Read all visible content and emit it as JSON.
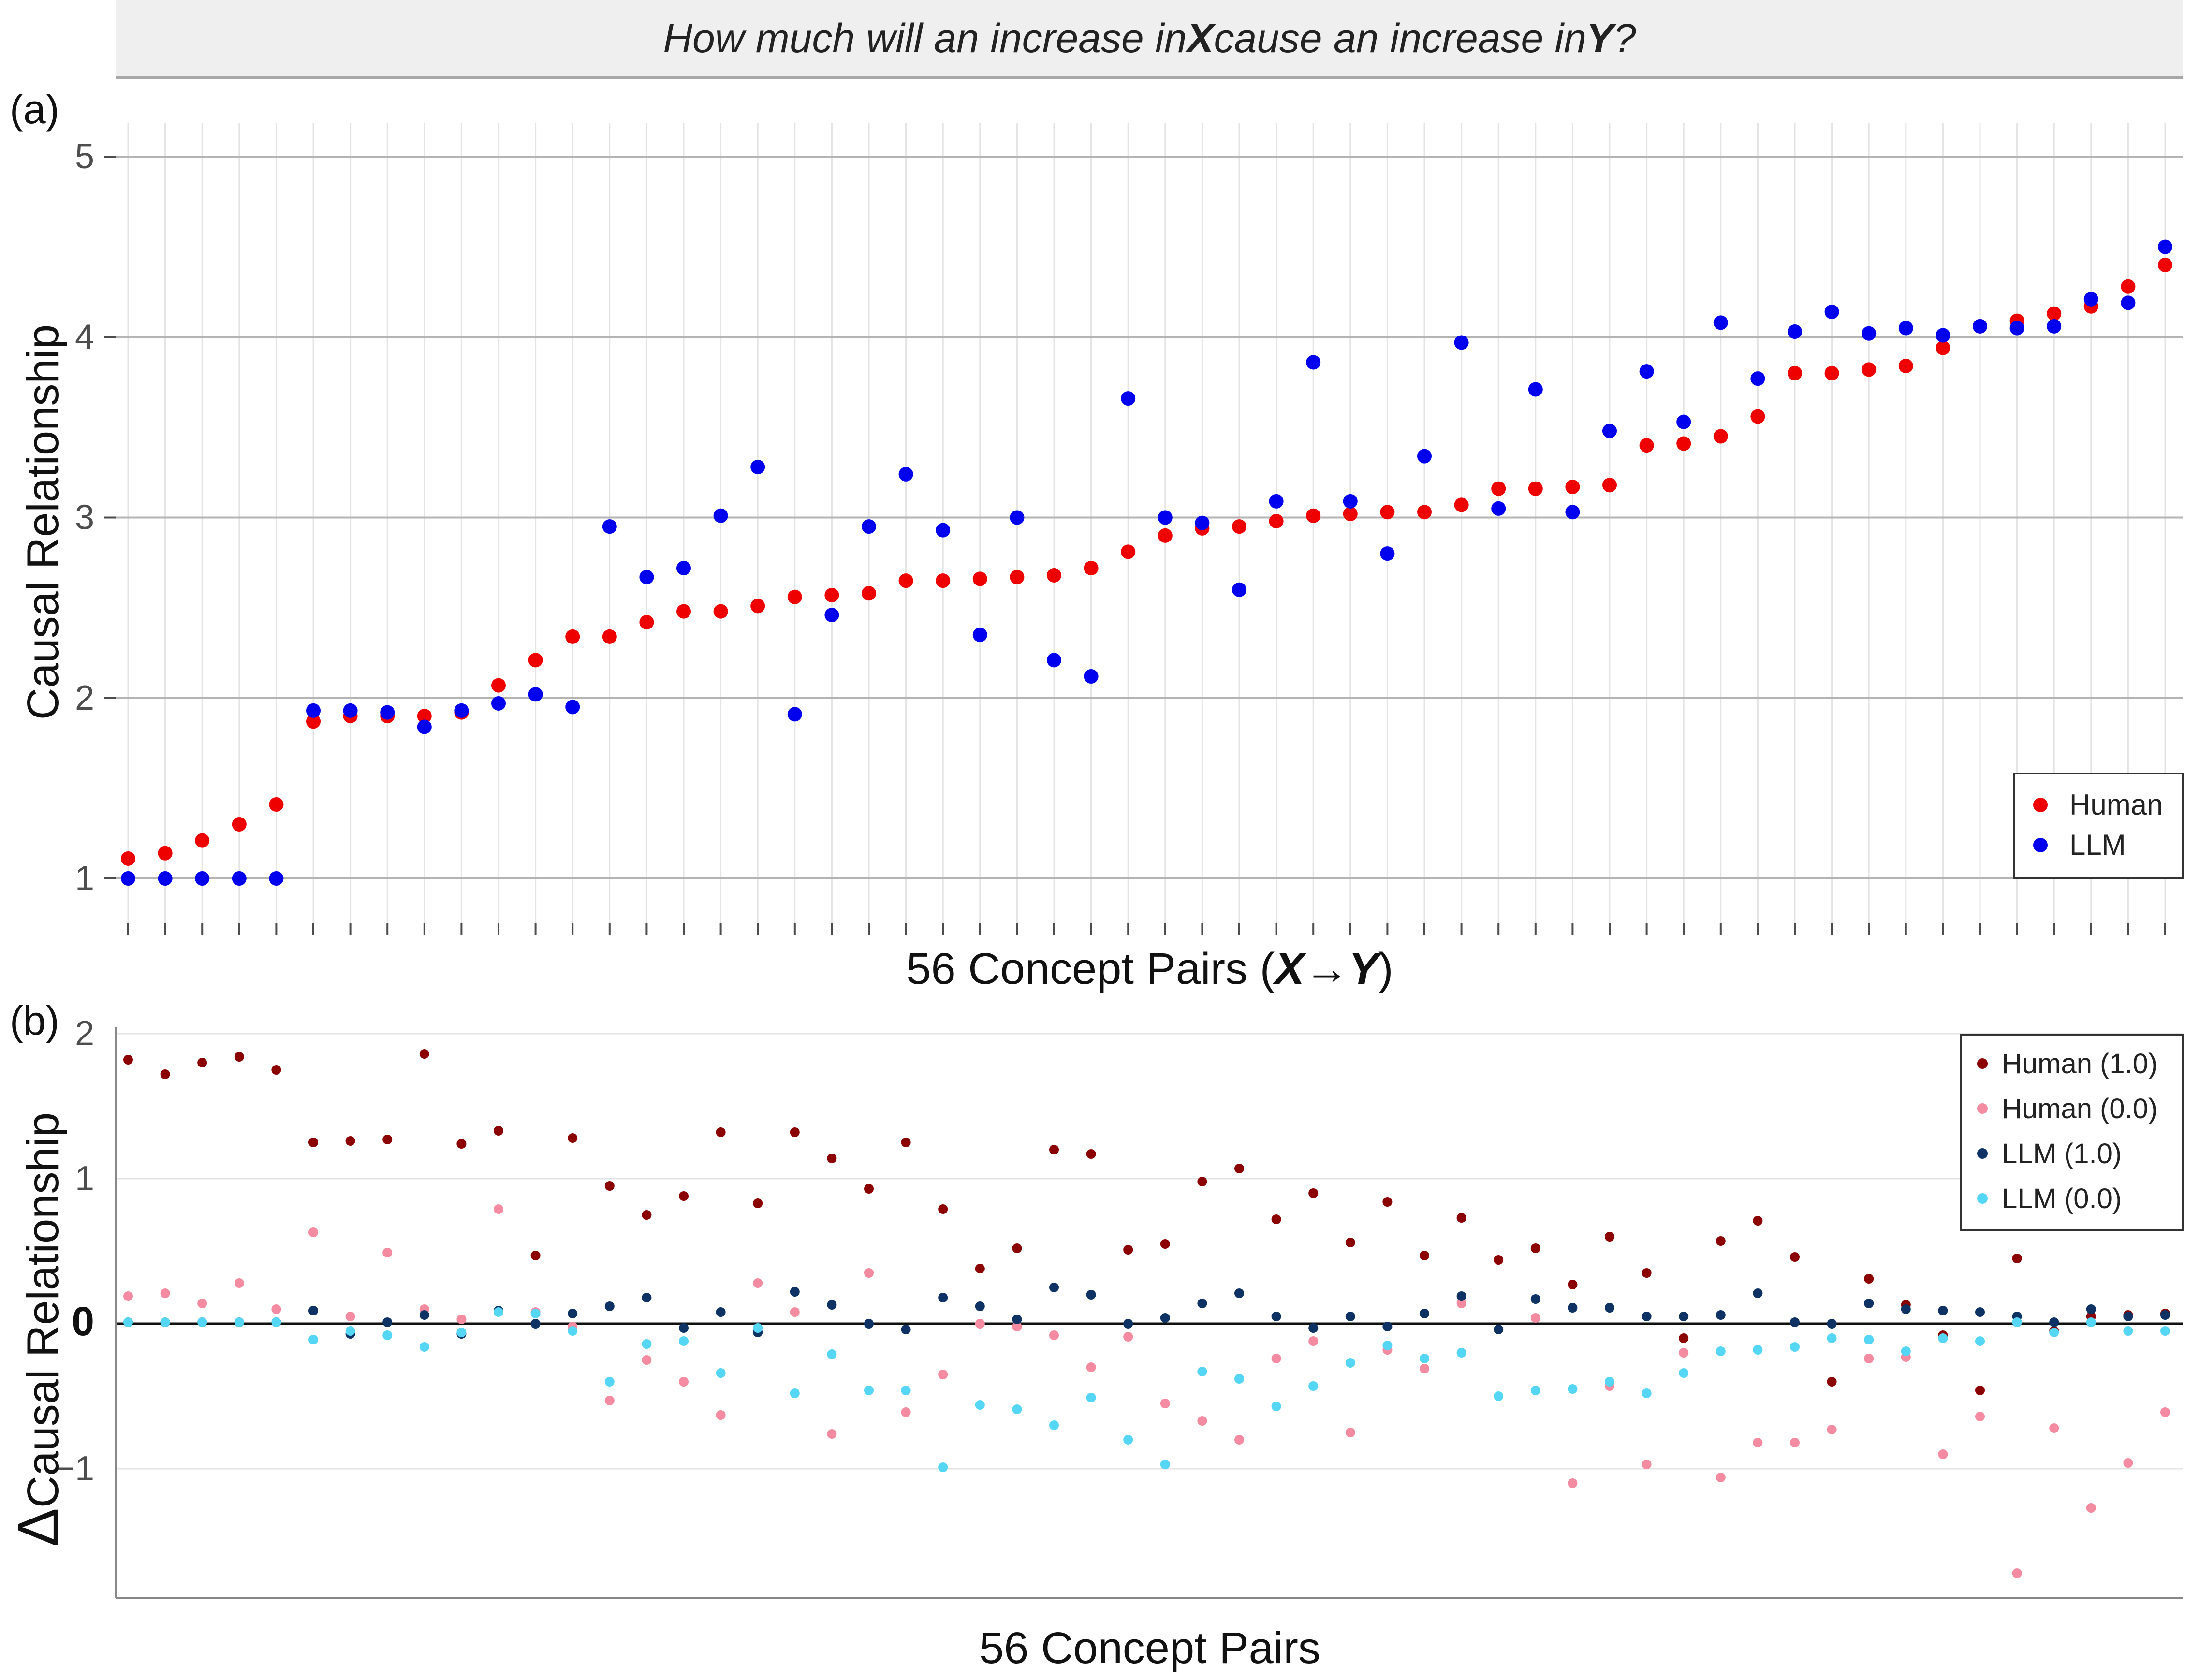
{
  "question": {
    "prefix": "How much will an increase in ",
    "x": "X",
    "middle": " cause an increase in ",
    "y": "Y",
    "suffix": "?"
  },
  "chart_data": [
    {
      "type": "scatter",
      "panel_label": "(a)",
      "title": "",
      "xlabel_prefix": "56 Concept Pairs (",
      "xlabel_formula": "X→Y",
      "xlabel_suffix": ")",
      "ylabel": "Causal Relationship",
      "ylim": [
        0.95,
        5.2
      ],
      "yticks": [
        1,
        2,
        3,
        4,
        5
      ],
      "x": [
        1,
        2,
        3,
        4,
        5,
        6,
        7,
        8,
        9,
        10,
        11,
        12,
        13,
        14,
        15,
        16,
        17,
        18,
        19,
        20,
        21,
        22,
        23,
        24,
        25,
        26,
        27,
        28,
        29,
        30,
        31,
        32,
        33,
        34,
        35,
        36,
        37,
        38,
        39,
        40,
        41,
        42,
        43,
        44,
        45,
        46,
        47,
        48,
        49,
        50,
        51,
        52,
        53,
        54,
        55,
        56
      ],
      "grid": true,
      "legend": {
        "position": "bottom-right",
        "entries": [
          "Human",
          "LLM"
        ]
      },
      "series": [
        {
          "name": "Human",
          "color": "#ee0000",
          "values": [
            1.11,
            1.14,
            1.21,
            1.3,
            1.41,
            1.87,
            1.9,
            1.9,
            1.9,
            1.92,
            2.07,
            2.21,
            2.34,
            2.34,
            2.42,
            2.48,
            2.48,
            2.51,
            2.56,
            2.57,
            2.58,
            2.65,
            2.65,
            2.66,
            2.67,
            2.68,
            2.72,
            2.81,
            2.9,
            2.94,
            2.95,
            2.98,
            3.01,
            3.02,
            3.03,
            3.03,
            3.07,
            3.16,
            3.16,
            3.17,
            3.18,
            3.4,
            3.41,
            3.45,
            3.56,
            3.8,
            3.8,
            3.82,
            3.84,
            3.94,
            4.06,
            4.09,
            4.13,
            4.17,
            4.28,
            4.4
          ]
        },
        {
          "name": "LLM",
          "color": "#0000ee",
          "values": [
            1.0,
            1.0,
            1.0,
            1.0,
            1.0,
            1.93,
            1.93,
            1.92,
            1.84,
            1.93,
            1.97,
            2.02,
            1.95,
            2.95,
            2.67,
            2.72,
            3.01,
            3.28,
            1.91,
            2.46,
            2.95,
            3.24,
            2.93,
            2.35,
            3.0,
            2.21,
            2.12,
            3.66,
            3.0,
            2.97,
            2.6,
            3.09,
            3.86,
            3.09,
            2.8,
            3.34,
            3.97,
            3.05,
            3.71,
            3.03,
            3.48,
            3.81,
            3.53,
            4.08,
            3.77,
            4.03,
            4.14,
            4.02,
            4.05,
            4.01,
            4.06,
            4.05,
            4.06,
            4.21,
            4.19,
            4.5
          ]
        }
      ]
    },
    {
      "type": "scatter",
      "panel_label": "(b)",
      "title": "",
      "xlabel": "56 Concept Pairs",
      "ylabel_delta": "Δ",
      "ylabel": "Causal Relationship",
      "ylim": [
        -1.9,
        2.15
      ],
      "yticks": [
        -1,
        0,
        1,
        2
      ],
      "ytick_labels": [
        "−1",
        "0",
        "1",
        "2"
      ],
      "x": [
        1,
        2,
        3,
        4,
        5,
        6,
        7,
        8,
        9,
        10,
        11,
        12,
        13,
        14,
        15,
        16,
        17,
        18,
        19,
        20,
        21,
        22,
        23,
        24,
        25,
        26,
        27,
        28,
        29,
        30,
        31,
        32,
        33,
        34,
        35,
        36,
        37,
        38,
        39,
        40,
        41,
        42,
        43,
        44,
        45,
        46,
        47,
        48,
        49,
        50,
        51,
        52,
        53,
        54,
        55,
        56
      ],
      "grid": true,
      "legend": {
        "position": "top-right",
        "entries": [
          "Human (1.0)",
          "Human (0.0)",
          "LLM (1.0)",
          "LLM (0.0)"
        ]
      },
      "series": [
        {
          "name": "Human (1.0)",
          "color": "#8b0000",
          "values": [
            1.82,
            1.72,
            1.8,
            1.84,
            1.75,
            1.25,
            1.26,
            1.27,
            1.86,
            1.24,
            1.33,
            0.47,
            1.28,
            0.95,
            0.75,
            0.88,
            1.32,
            0.83,
            1.32,
            1.14,
            0.93,
            1.25,
            0.79,
            0.38,
            0.52,
            1.2,
            1.17,
            0.51,
            0.55,
            0.98,
            1.07,
            0.72,
            0.9,
            0.56,
            0.84,
            0.47,
            0.73,
            0.44,
            0.52,
            0.27,
            0.6,
            0.35,
            -0.1,
            0.57,
            0.71,
            0.46,
            -0.4,
            0.31,
            0.13,
            -0.08,
            -0.46,
            0.45,
            -0.05,
            0.05,
            0.06,
            0.07
          ]
        },
        {
          "name": "Human (0.0)",
          "color": "#f48ba0",
          "values": [
            0.19,
            0.21,
            0.14,
            0.28,
            0.1,
            0.63,
            0.05,
            0.49,
            0.1,
            0.03,
            0.79,
            0.08,
            -0.02,
            -0.53,
            -0.25,
            -0.4,
            -0.63,
            0.28,
            0.08,
            -0.76,
            0.35,
            -0.61,
            -0.35,
            0.0,
            -0.02,
            -0.08,
            -0.3,
            -0.09,
            -0.55,
            -0.67,
            -0.8,
            -0.24,
            -0.12,
            -0.75,
            -0.18,
            -0.31,
            0.14,
            -0.04,
            0.04,
            -1.1,
            -0.43,
            -0.97,
            -0.2,
            -1.06,
            -0.82,
            -0.82,
            -0.73,
            -0.24,
            -0.23,
            -0.9,
            -0.64,
            -1.72,
            -0.72,
            -1.27,
            -0.96,
            -0.61
          ]
        },
        {
          "name": "LLM (1.0)",
          "color": "#0d3263",
          "values": [
            0.01,
            0.01,
            0.01,
            0.01,
            0.01,
            0.09,
            -0.07,
            0.01,
            0.06,
            -0.07,
            0.09,
            0.0,
            0.07,
            0.12,
            0.18,
            -0.03,
            0.08,
            -0.06,
            0.22,
            0.13,
            0.0,
            -0.04,
            0.18,
            0.12,
            0.03,
            0.25,
            0.2,
            0.0,
            0.04,
            0.14,
            0.21,
            0.05,
            -0.03,
            0.05,
            -0.02,
            0.07,
            0.19,
            -0.04,
            0.17,
            0.11,
            0.11,
            0.05,
            0.05,
            0.06,
            0.21,
            0.01,
            0.0,
            0.14,
            0.1,
            0.09,
            0.08,
            0.05,
            0.01,
            0.1,
            0.05,
            0.06
          ]
        },
        {
          "name": "LLM (0.0)",
          "color": "#55d6f5",
          "values": [
            0.01,
            0.01,
            0.01,
            0.01,
            0.01,
            -0.11,
            -0.05,
            -0.08,
            -0.16,
            -0.06,
            0.08,
            0.07,
            -0.05,
            -0.4,
            -0.14,
            -0.12,
            -0.34,
            -0.03,
            -0.48,
            -0.21,
            -0.46,
            -0.46,
            -0.99,
            -0.56,
            -0.59,
            -0.7,
            -0.51,
            -0.8,
            -0.97,
            -0.33,
            -0.38,
            -0.57,
            -0.43,
            -0.27,
            -0.15,
            -0.24,
            -0.2,
            -0.5,
            -0.46,
            -0.45,
            -0.4,
            -0.48,
            -0.34,
            -0.19,
            -0.18,
            -0.16,
            -0.1,
            -0.11,
            -0.19,
            -0.1,
            -0.12,
            0.01,
            -0.06,
            0.01,
            -0.05,
            -0.05
          ]
        }
      ]
    }
  ]
}
